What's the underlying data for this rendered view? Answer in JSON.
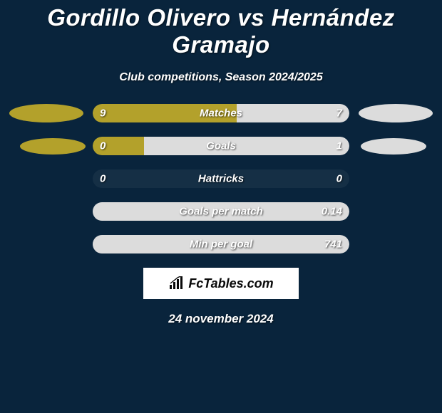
{
  "title": "Gordillo Olivero vs Hernández Gramajo",
  "subtitle": "Club competitions, Season 2024/2025",
  "date": "24 november 2024",
  "logo_text": "FcTables.com",
  "colors": {
    "background": "#09243c",
    "player_left": "#b3a12b",
    "player_right": "#dcdcdc",
    "text": "#ffffff",
    "track": "rgba(255,255,255,0.05)"
  },
  "shape_rows": [
    0,
    1
  ],
  "rows": [
    {
      "label": "Matches",
      "left_val": "9",
      "right_val": "7",
      "left_pct": 56,
      "right_pct": 44
    },
    {
      "label": "Goals",
      "left_val": "0",
      "right_val": "1",
      "left_pct": 20,
      "right_pct": 80
    },
    {
      "label": "Hattricks",
      "left_val": "0",
      "right_val": "0",
      "left_pct": 0,
      "right_pct": 0
    },
    {
      "label": "Goals per match",
      "left_val": "",
      "right_val": "0.14",
      "left_pct": 0,
      "right_pct": 100
    },
    {
      "label": "Min per goal",
      "left_val": "",
      "right_val": "741",
      "left_pct": 0,
      "right_pct": 100
    }
  ]
}
